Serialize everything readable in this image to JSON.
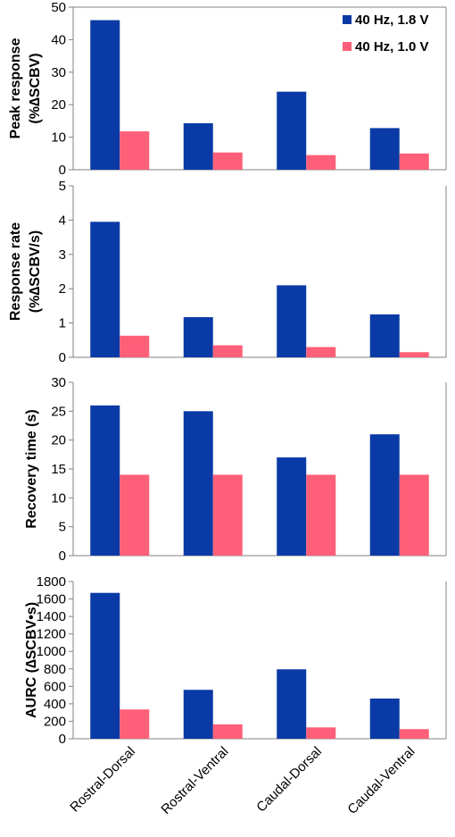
{
  "colors": {
    "series_a": "#0a3aa6",
    "series_b": "#ff5f78",
    "axis": "#808080"
  },
  "legend": {
    "placement": "top-right",
    "series": [
      "40 Hz, 1.8 V",
      "40 Hz, 1.0 V"
    ]
  },
  "categories": [
    "Rostral-Dorsal",
    "Rostral-Ventral",
    "Caudal-Dorsal",
    "Caudal-Ventral"
  ],
  "chart_data": [
    {
      "type": "bar",
      "ylabel_lines": [
        "Peak response",
        "(%∆SCBV)"
      ],
      "ylim": [
        0,
        50
      ],
      "yticks": [
        0,
        10,
        20,
        30,
        40,
        50
      ],
      "series": [
        {
          "name": "40 Hz, 1.8 V",
          "values": [
            46,
            14.3,
            24,
            12.8
          ]
        },
        {
          "name": "40 Hz, 1.0 V",
          "values": [
            11.8,
            5.3,
            4.5,
            5
          ]
        }
      ]
    },
    {
      "type": "bar",
      "ylabel_lines": [
        "Response rate",
        "(%∆SCBV/s)"
      ],
      "ylim": [
        0,
        5
      ],
      "yticks": [
        0,
        1,
        2,
        3,
        4,
        5
      ],
      "series": [
        {
          "name": "40 Hz, 1.8 V",
          "values": [
            3.95,
            1.17,
            2.1,
            1.25
          ]
        },
        {
          "name": "40 Hz, 1.0 V",
          "values": [
            0.63,
            0.35,
            0.3,
            0.15
          ]
        }
      ]
    },
    {
      "type": "bar",
      "ylabel_lines": [
        "Recovery time (s)"
      ],
      "ylim": [
        0,
        30
      ],
      "yticks": [
        0,
        5,
        10,
        15,
        20,
        25,
        30
      ],
      "series": [
        {
          "name": "40 Hz, 1.8 V",
          "values": [
            26,
            25,
            17,
            21
          ]
        },
        {
          "name": "40 Hz, 1.0 V",
          "values": [
            14,
            14,
            14,
            14
          ]
        }
      ]
    },
    {
      "type": "bar",
      "ylabel_lines": [
        "AURC (∆SCBV•s)"
      ],
      "ylim": [
        0,
        1800
      ],
      "yticks": [
        0,
        200,
        400,
        600,
        800,
        1000,
        1200,
        1400,
        1600,
        1800
      ],
      "series": [
        {
          "name": "40 Hz, 1.8 V",
          "values": [
            1670,
            560,
            795,
            460
          ]
        },
        {
          "name": "40 Hz, 1.0 V",
          "values": [
            335,
            165,
            130,
            110
          ]
        }
      ]
    }
  ]
}
